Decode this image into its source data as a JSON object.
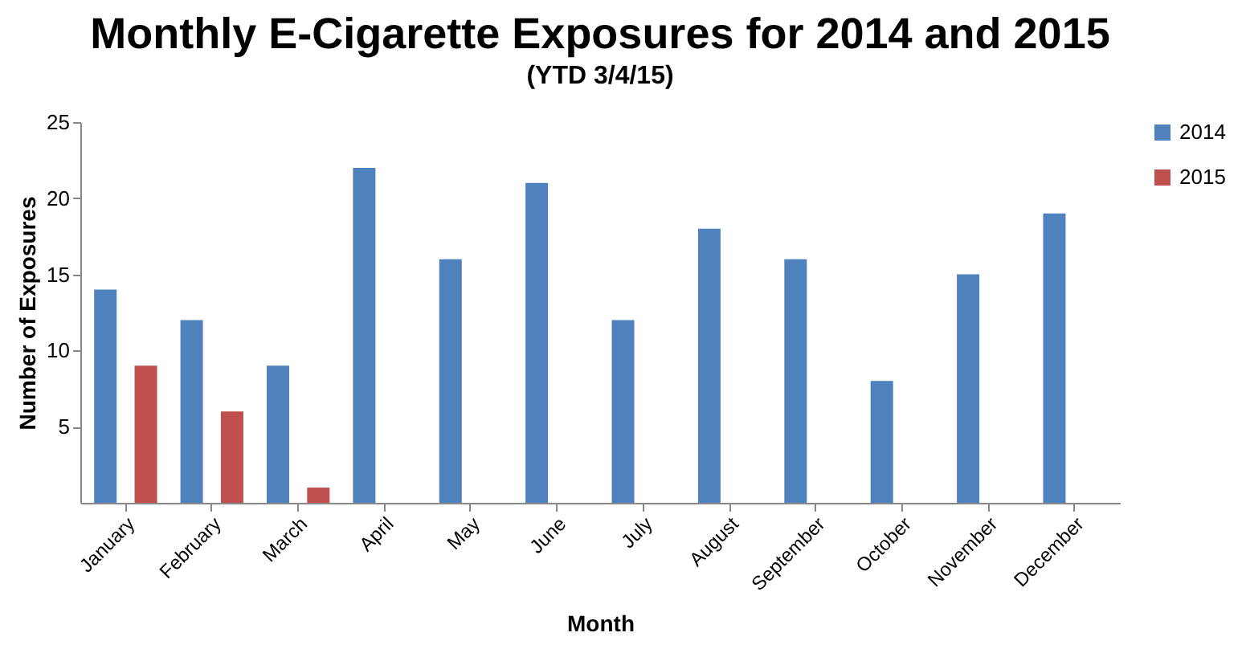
{
  "chart_data": {
    "type": "bar",
    "title": "Monthly E-Cigarette Exposures for 2014 and 2015",
    "subtitle": "(YTD 3/4/15)",
    "xlabel": "Month",
    "ylabel": "Number of Exposures",
    "categories": [
      "January",
      "February",
      "March",
      "April",
      "May",
      "June",
      "July",
      "August",
      "September",
      "October",
      "November",
      "December"
    ],
    "series": [
      {
        "name": "2014",
        "color": "#4f81bd",
        "values": [
          14,
          12,
          9,
          22,
          16,
          21,
          12,
          18,
          16,
          8,
          15,
          19
        ]
      },
      {
        "name": "2015",
        "color": "#c0504d",
        "values": [
          9,
          6,
          1,
          null,
          null,
          null,
          null,
          null,
          null,
          null,
          null,
          null
        ]
      }
    ],
    "ylim": [
      0,
      25
    ],
    "yticks": [
      5,
      10,
      15,
      20,
      25
    ],
    "grid": false,
    "legend": "right"
  }
}
